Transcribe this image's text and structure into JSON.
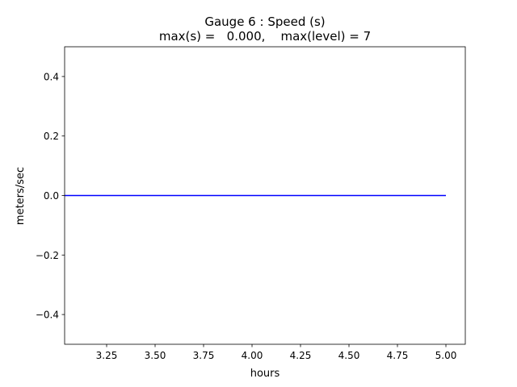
{
  "chart_data": {
    "type": "line",
    "title": "Gauge 6 : Speed (s)",
    "subtitle": "max(s) =   0.000,    max(level) = 7",
    "x_label": "hours",
    "y_label": "meters/sec",
    "x": [
      3.0333,
      5.0
    ],
    "series": [
      {
        "color": "#0000ff",
        "values": [
          0,
          0
        ]
      }
    ],
    "xlim": [
      3.0333,
      5.1
    ],
    "xticks": [
      {
        "value": 3.25,
        "label": "3.25"
      },
      {
        "value": 3.5,
        "label": "3.50"
      },
      3.75,
      {
        "value": 4.0,
        "label": "4.00"
      },
      4.25,
      {
        "value": 4.5,
        "label": "4.50"
      },
      4.75,
      {
        "value": 5.0,
        "label": "5.00"
      }
    ],
    "ylim": [
      -0.5,
      0.5
    ],
    "yticks": [
      {
        "value": -0.4,
        "label": "−0.4"
      },
      {
        "value": -0.2,
        "label": "−0.2"
      },
      {
        "value": 0,
        "label": "0.0"
      },
      0.2,
      0.4
    ],
    "grid": false
  }
}
